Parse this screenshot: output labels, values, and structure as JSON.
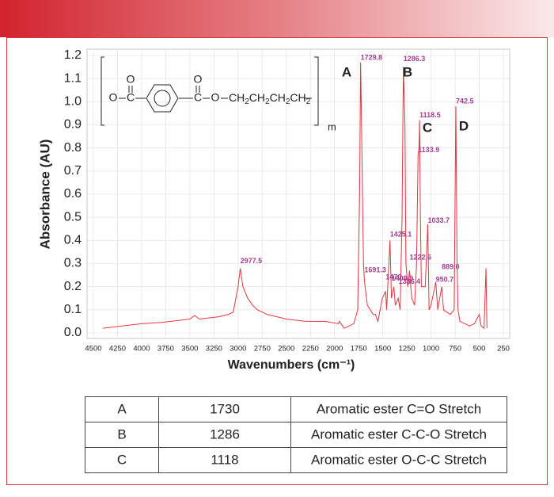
{
  "chart_data": {
    "type": "line",
    "x_label": "Wavenumbers (cm⁻¹)",
    "y_label": "Absorbance (AU)",
    "color": "#e3363f",
    "grid": true,
    "xlim": [
      4500,
      250
    ],
    "ylim": [
      0,
      1.2
    ],
    "xticks": [
      4500,
      4250,
      4000,
      3750,
      3500,
      3250,
      3000,
      2750,
      2500,
      2250,
      2000,
      1750,
      1500,
      1250,
      1000,
      750,
      500,
      250
    ],
    "yticks": [
      {
        "value": 0,
        "label": "0.0"
      },
      0.1,
      0.2,
      0.3,
      0.4,
      0.5,
      0.6,
      0.7,
      0.8,
      0.9,
      {
        "value": 1,
        "label": "1.0"
      },
      1.1,
      1.2
    ],
    "x": [
      4400,
      4200,
      4000,
      3800,
      3600,
      3500,
      3450,
      3400,
      3200,
      3100,
      3050,
      3000,
      2977.5,
      2950,
      2900,
      2850,
      2800,
      2700,
      2500,
      2300,
      2100,
      1960,
      1950,
      1900,
      1800,
      1760,
      1740,
      1729.8,
      1720,
      1700,
      1691.3,
      1660,
      1600,
      1577,
      1550,
      1505,
      1470,
      1460,
      1425.1,
      1410,
      1385,
      1370,
      1340,
      1320,
      1300,
      1286.3,
      1270,
      1260,
      1240,
      1222.6,
      1200,
      1170,
      1150,
      1133.9,
      1125,
      1118.5,
      1110,
      1100,
      1060,
      1050,
      1033.7,
      1020,
      1000,
      960,
      950.7,
      930,
      889,
      870,
      800,
      760,
      742.5,
      730,
      720,
      700,
      600,
      550,
      500,
      480,
      450,
      430,
      420
    ],
    "values": [
      0.02,
      0.03,
      0.04,
      0.045,
      0.055,
      0.06,
      0.075,
      0.06,
      0.07,
      0.08,
      0.09,
      0.2,
      0.28,
      0.2,
      0.15,
      0.12,
      0.1,
      0.08,
      0.06,
      0.05,
      0.05,
      0.04,
      0.05,
      0.02,
      0.04,
      0.1,
      0.6,
      1.17,
      0.9,
      0.3,
      0.23,
      0.12,
      0.08,
      0.08,
      0.05,
      0.15,
      0.18,
      0.1,
      0.4,
      0.15,
      0.2,
      0.12,
      0.15,
      0.1,
      0.5,
      1.15,
      0.9,
      0.3,
      0.2,
      0.27,
      0.15,
      0.12,
      0.3,
      0.77,
      0.8,
      0.92,
      0.5,
      0.2,
      0.2,
      0.3,
      0.47,
      0.1,
      0.12,
      0.2,
      0.22,
      0.1,
      0.2,
      0.1,
      0.08,
      0.1,
      0.98,
      0.3,
      0.1,
      0.05,
      0.03,
      0.04,
      0.08,
      0.03,
      0.02,
      0.28,
      0.02
    ],
    "annotations": [
      {
        "label": "2977.5",
        "x": 2977.5,
        "y": 0.31
      },
      {
        "label": "1729.8",
        "x": 1729.8,
        "y": 1.19
      },
      {
        "label": "1286.3",
        "x": 1286.3,
        "y": 1.185
      },
      {
        "label": "1118.5",
        "x": 1118.5,
        "y": 0.94
      },
      {
        "label": "742.5",
        "x": 742.5,
        "y": 1.0
      },
      {
        "label": "1133.9",
        "x": 1133.9,
        "y": 0.79
      },
      {
        "label": "1425.1",
        "x": 1425.1,
        "y": 0.425
      },
      {
        "label": "1033.7",
        "x": 1033.7,
        "y": 0.485
      },
      {
        "label": "1222.6",
        "x": 1222.6,
        "y": 0.325
      },
      {
        "label": "1691.3",
        "x": 1691.3,
        "y": 0.27
      },
      {
        "label": "889.0",
        "x": 889,
        "y": 0.285
      },
      {
        "label": "1470",
        "x": 1470,
        "y": 0.24
      },
      {
        "label": "1409.9",
        "x": 1409.9,
        "y": 0.235
      },
      {
        "label": "1336.4",
        "x": 1336.4,
        "y": 0.22
      },
      {
        "label": "950.7",
        "x": 950.7,
        "y": 0.23
      }
    ],
    "peak_letters": [
      "A",
      "B",
      "C",
      "D"
    ]
  },
  "structure": {
    "atoms": [
      "O",
      "C",
      "O",
      "C",
      "O",
      "O",
      "CH",
      "2",
      "CH",
      "2",
      "CH",
      "2",
      "CH",
      "2"
    ],
    "repeat": "m"
  },
  "table": {
    "rows": [
      [
        "A",
        "1730",
        "Aromatic ester C=O Stretch"
      ],
      [
        "B",
        "1286",
        "Aromatic ester C-C-O Stretch"
      ],
      [
        "C",
        "1118",
        "Aromatic ester O-C-C Stretch"
      ]
    ]
  }
}
